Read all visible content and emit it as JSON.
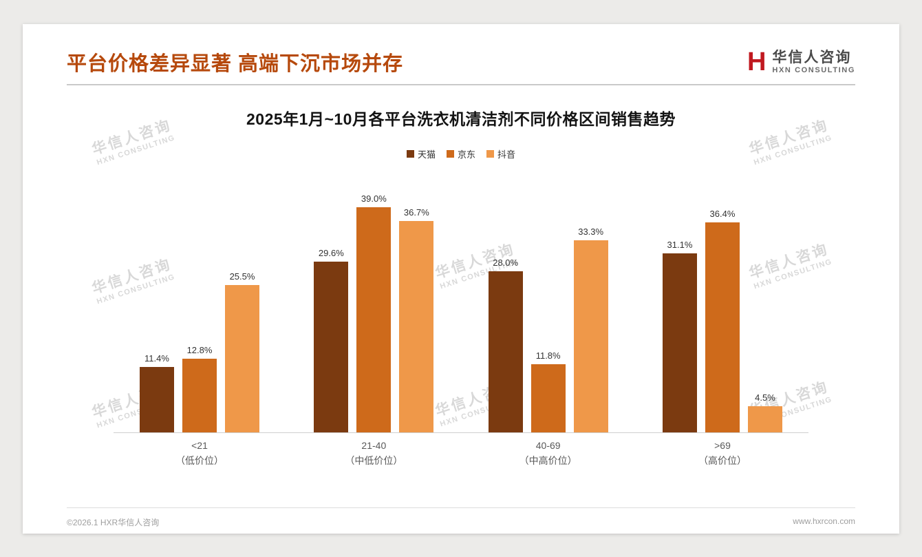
{
  "page": {
    "header": {
      "title": "平台价格差异显著 高端下沉市场并存",
      "logo": {
        "mark": "H",
        "name_cn": "华信人咨询",
        "name_en": "HXN CONSULTING"
      }
    },
    "watermark": {
      "line1": "华信人咨询",
      "line2": "HXN CONSULTING"
    },
    "footer": {
      "copyright": "©2026.1 HXR华信人咨询",
      "website": "www.hxrcon.com"
    }
  },
  "chart_data": {
    "type": "bar",
    "title": "2025年1月~10月各平台洗衣机清洁剂不同价格区间销售趋势",
    "categories": [
      "<21",
      "21-40",
      "40-69",
      ">69"
    ],
    "category_sublabels": [
      "（低价位）",
      "（中低价位）",
      "（中高价位）",
      "（高价位）"
    ],
    "series": [
      {
        "name": "天猫",
        "color": "#7B3A10",
        "values": [
          11.4,
          29.6,
          28.0,
          31.1
        ]
      },
      {
        "name": "京东",
        "color": "#CE6A1B",
        "values": [
          12.8,
          39.0,
          11.8,
          36.4
        ]
      },
      {
        "name": "抖音",
        "color": "#EF9849",
        "values": [
          25.5,
          36.7,
          33.3,
          4.5
        ]
      }
    ],
    "value_suffix": "%",
    "ylim": [
      0,
      40
    ],
    "grid": false,
    "legend_position": "top",
    "xlabel": "",
    "ylabel": ""
  }
}
